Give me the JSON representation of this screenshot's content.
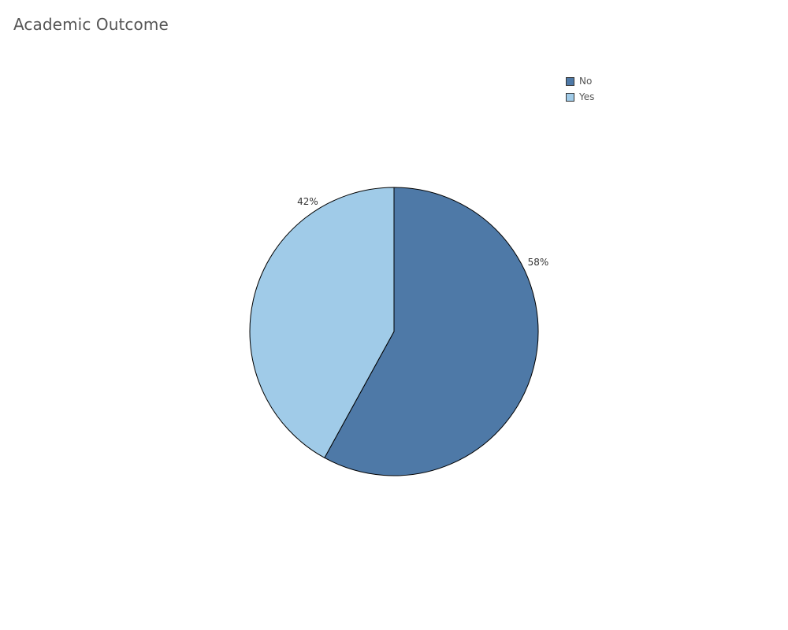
{
  "chart_data": {
    "type": "pie",
    "title": "Academic Outcome",
    "categories": [
      "No",
      "Yes"
    ],
    "values": [
      58,
      42
    ],
    "value_labels": [
      "58%",
      "42%"
    ],
    "colors": [
      "#4e79a7",
      "#a0cbe8"
    ],
    "legend_position": "top-right",
    "start_angle": "12 o'clock",
    "direction": "clockwise"
  }
}
